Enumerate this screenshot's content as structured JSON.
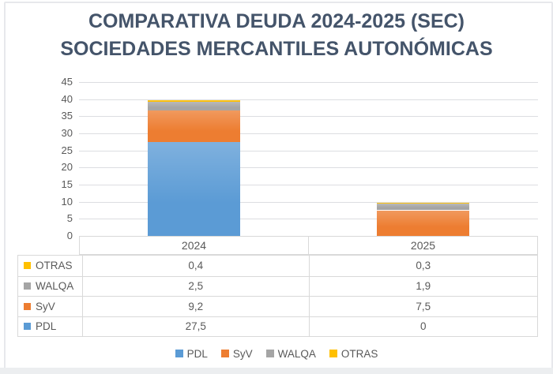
{
  "title": {
    "line1": "COMPARATIVA DEUDA 2024-2025 (SEC)",
    "line2": "SOCIEDADES MERCANTILES AUTONÓMICAS"
  },
  "colors": {
    "title_text": "#44546A",
    "axis_text": "#595959",
    "gridline": "#dcdde1",
    "table_border": "#d9d9d9",
    "pdl": "#5B9BD5",
    "syv": "#ED7D31",
    "walqa": "#A5A5A5",
    "otras": "#FFC000"
  },
  "chart_data": {
    "type": "bar",
    "stacked": true,
    "title": "COMPARATIVA DEUDA 2024-2025 (SEC) SOCIEDADES MERCANTILES AUTONÓMICAS",
    "categories": [
      "2024",
      "2025"
    ],
    "series": [
      {
        "name": "PDL",
        "color": "#5B9BD5",
        "values": [
          27.5,
          0
        ]
      },
      {
        "name": "SyV",
        "color": "#ED7D31",
        "values": [
          9.2,
          7.5
        ]
      },
      {
        "name": "WALQA",
        "color": "#A5A5A5",
        "values": [
          2.5,
          1.9
        ]
      },
      {
        "name": "OTRAS",
        "color": "#FFC000",
        "values": [
          0.4,
          0.3
        ]
      }
    ],
    "xlabel": "",
    "ylabel": "",
    "ylim": [
      0,
      45
    ],
    "ytick_step": 5,
    "yticks": [
      0,
      5,
      10,
      15,
      20,
      25,
      30,
      35,
      40,
      45
    ],
    "grid": true,
    "legend_position": "bottom",
    "data_table_shown": true
  },
  "table": {
    "rows": [
      {
        "label": "OTRAS",
        "color": "#FFC000",
        "v2024": "0,4",
        "v2025": "0,3"
      },
      {
        "label": "WALQA",
        "color": "#A5A5A5",
        "v2024": "2,5",
        "v2025": "1,9"
      },
      {
        "label": "SyV",
        "color": "#ED7D31",
        "v2024": "9,2",
        "v2025": "7,5"
      },
      {
        "label": "PDL",
        "color": "#5B9BD5",
        "v2024": "27,5",
        "v2025": "0"
      }
    ]
  },
  "legend": {
    "items": [
      {
        "label": "PDL",
        "color": "#5B9BD5"
      },
      {
        "label": "SyV",
        "color": "#ED7D31"
      },
      {
        "label": "WALQA",
        "color": "#A5A5A5"
      },
      {
        "label": "OTRAS",
        "color": "#FFC000"
      }
    ]
  }
}
